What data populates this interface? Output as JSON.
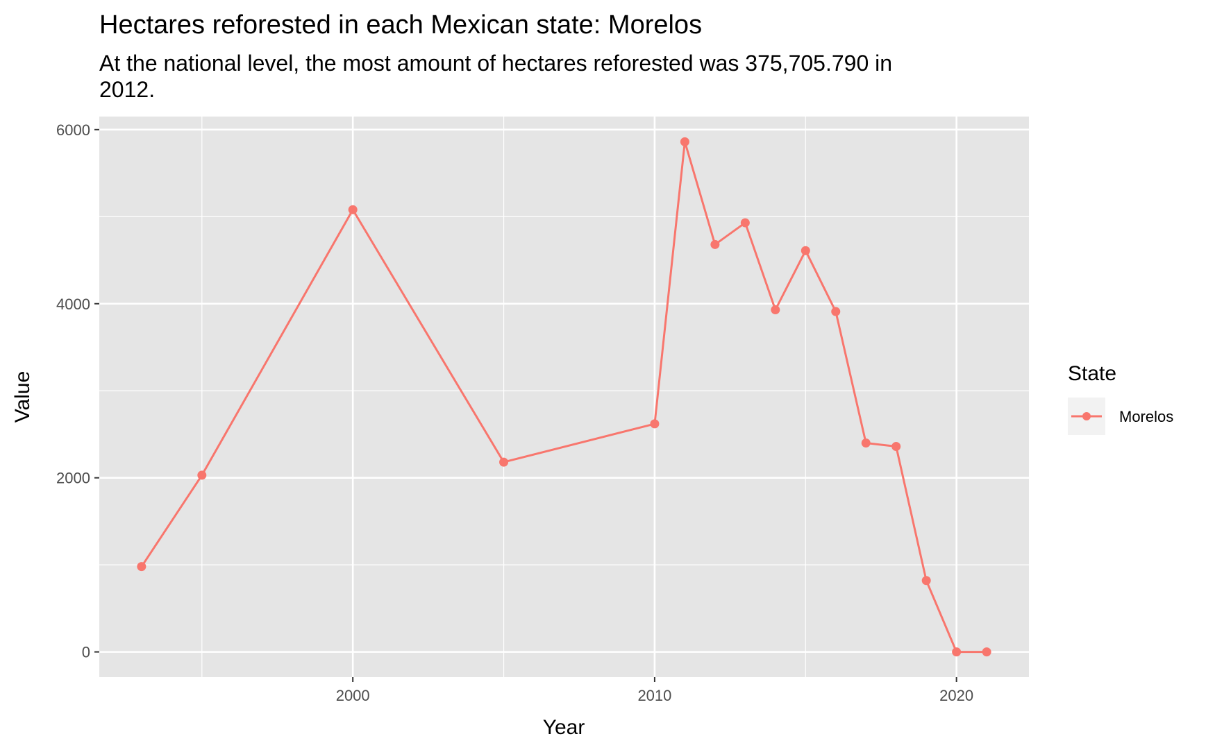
{
  "chart_data": {
    "type": "line",
    "title": "Hectares reforested in each Mexican state: Morelos",
    "subtitle_lines": [
      "At the national level, the most amount of hectares reforested was 375,705.790 in",
      "2012."
    ],
    "xlabel": "Year",
    "ylabel": "Value",
    "xlim": [
      1991.6,
      2022.4
    ],
    "ylim": [
      -290,
      6150
    ],
    "x_ticks": [
      2000,
      2010,
      2020
    ],
    "x_minor_ticks": [
      1995,
      2005,
      2015
    ],
    "y_ticks": [
      0,
      2000,
      4000,
      6000
    ],
    "y_minor_ticks": [
      1000,
      3000,
      5000
    ],
    "grid": true,
    "legend": {
      "title": "State",
      "position": "right"
    },
    "series": [
      {
        "name": "Morelos",
        "color": "#f8766d",
        "x": [
          1993,
          1995,
          2000,
          2005,
          2010,
          2011,
          2012,
          2013,
          2014,
          2015,
          2016,
          2017,
          2018,
          2019,
          2020,
          2021
        ],
        "values": [
          980,
          2030,
          5080,
          2180,
          2620,
          5860,
          4680,
          4930,
          3930,
          4610,
          3910,
          2400,
          2360,
          820,
          0,
          0
        ]
      }
    ]
  },
  "theme": {
    "panel_bg": "#e5e5e5",
    "grid_color": "#ffffff",
    "legend_key_bg": "#f2f2f2"
  }
}
